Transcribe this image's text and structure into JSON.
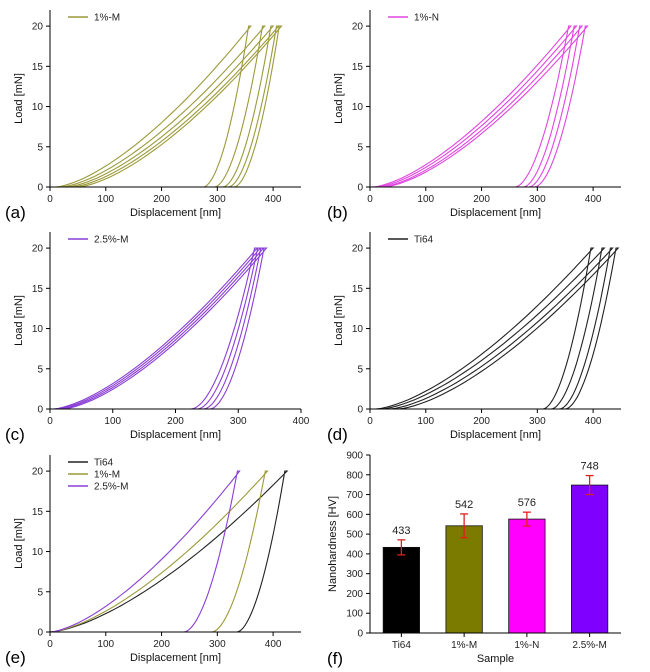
{
  "chart_data": [
    {
      "panel": "(a)",
      "type": "line",
      "xlabel": "Displacement [nm]",
      "ylabel": "Load [mN]",
      "xlim": [
        0,
        450
      ],
      "ylim": [
        0,
        22
      ],
      "xticks": [
        0,
        100,
        200,
        300,
        400
      ],
      "yticks": [
        0,
        5,
        10,
        15,
        20
      ],
      "legend": {
        "position": "top-left",
        "color": "#9c9a3a"
      },
      "series": [
        {
          "name": "1%-M",
          "color": "#9c9a3a",
          "curves": [
            {
              "start": 10,
              "peak": 360,
              "end": 275,
              "max": 20
            },
            {
              "start": 20,
              "peak": 385,
              "end": 295,
              "max": 20
            },
            {
              "start": 30,
              "peak": 400,
              "end": 310,
              "max": 20
            },
            {
              "start": 40,
              "peak": 410,
              "end": 320,
              "max": 20
            },
            {
              "start": 50,
              "peak": 415,
              "end": 330,
              "max": 20
            }
          ]
        }
      ]
    },
    {
      "panel": "(b)",
      "type": "line",
      "xlabel": "Displacement [nm]",
      "ylabel": "Load [mN]",
      "xlim": [
        0,
        450
      ],
      "ylim": [
        0,
        22
      ],
      "xticks": [
        0,
        100,
        200,
        300,
        400
      ],
      "yticks": [
        0,
        5,
        10,
        15,
        20
      ],
      "legend": {
        "position": "top-left",
        "color": "#e046e0"
      },
      "series": [
        {
          "name": "1%-N",
          "color": "#e046e0",
          "curves": [
            {
              "start": 5,
              "peak": 360,
              "end": 260,
              "max": 20
            },
            {
              "start": 12,
              "peak": 370,
              "end": 275,
              "max": 20
            },
            {
              "start": 20,
              "peak": 380,
              "end": 285,
              "max": 20
            },
            {
              "start": 25,
              "peak": 390,
              "end": 295,
              "max": 20
            }
          ]
        }
      ]
    },
    {
      "panel": "(c)",
      "type": "line",
      "xlabel": "Displacement [nm]",
      "ylabel": "Load [mN]",
      "xlim": [
        0,
        400
      ],
      "ylim": [
        0,
        22
      ],
      "xticks": [
        0,
        100,
        200,
        300,
        400
      ],
      "yticks": [
        0,
        5,
        10,
        15,
        20
      ],
      "legend": {
        "position": "top-left",
        "color": "#8a3fd6"
      },
      "series": [
        {
          "name": "2.5%-M",
          "color": "#8a3fd6",
          "curves": [
            {
              "start": 5,
              "peak": 330,
              "end": 225,
              "max": 20
            },
            {
              "start": 10,
              "peak": 335,
              "end": 235,
              "max": 20
            },
            {
              "start": 15,
              "peak": 340,
              "end": 245,
              "max": 20
            },
            {
              "start": 20,
              "peak": 345,
              "end": 255,
              "max": 20
            }
          ]
        }
      ]
    },
    {
      "panel": "(d)",
      "type": "line",
      "xlabel": "Displacement [nm]",
      "ylabel": "Load [mN]",
      "xlim": [
        0,
        450
      ],
      "ylim": [
        0,
        22
      ],
      "xticks": [
        0,
        100,
        200,
        300,
        400
      ],
      "yticks": [
        0,
        5,
        10,
        15,
        20
      ],
      "legend": {
        "position": "top-left",
        "color": "#222222"
      },
      "series": [
        {
          "name": "Ti64",
          "color": "#222222",
          "curves": [
            {
              "start": 10,
              "peak": 400,
              "end": 310,
              "max": 20
            },
            {
              "start": 20,
              "peak": 420,
              "end": 325,
              "max": 20
            },
            {
              "start": 35,
              "peak": 435,
              "end": 340,
              "max": 20
            },
            {
              "start": 50,
              "peak": 445,
              "end": 350,
              "max": 20
            }
          ]
        }
      ]
    },
    {
      "panel": "(e)",
      "type": "line",
      "xlabel": "Displacement [nm]",
      "ylabel": "Load [mN]",
      "xlim": [
        0,
        450
      ],
      "ylim": [
        0,
        22
      ],
      "xticks": [
        0,
        100,
        200,
        300,
        400
      ],
      "yticks": [
        0,
        5,
        10,
        15,
        20
      ],
      "legend": {
        "position": "top-left"
      },
      "series": [
        {
          "name": "Ti64",
          "color": "#222222",
          "curves": [
            {
              "start": 0,
              "peak": 425,
              "end": 335,
              "max": 20
            }
          ]
        },
        {
          "name": "1%-M",
          "color": "#9c9a3a",
          "curves": [
            {
              "start": 0,
              "peak": 390,
              "end": 290,
              "max": 20
            }
          ]
        },
        {
          "name": "2.5%-M",
          "color": "#8a3fd6",
          "curves": [
            {
              "start": 0,
              "peak": 340,
              "end": 240,
              "max": 20
            }
          ]
        }
      ]
    },
    {
      "panel": "(f)",
      "type": "bar",
      "xlabel": "Sample",
      "ylabel": "Nanohardness [HV]",
      "ylim": [
        0,
        900
      ],
      "yticks": [
        0,
        100,
        200,
        300,
        400,
        500,
        600,
        700,
        800,
        900
      ],
      "categories": [
        "Ti64",
        "1%-M",
        "1%-N",
        "2.5%-M"
      ],
      "values": [
        433,
        542,
        576,
        748
      ],
      "errors": [
        38,
        60,
        35,
        48
      ],
      "value_labels": [
        "433",
        "542",
        "576",
        "748"
      ],
      "colors": [
        "#000000",
        "#7b7b00",
        "#ff00ff",
        "#7f00ff"
      ],
      "error_color": "#e02020"
    }
  ]
}
